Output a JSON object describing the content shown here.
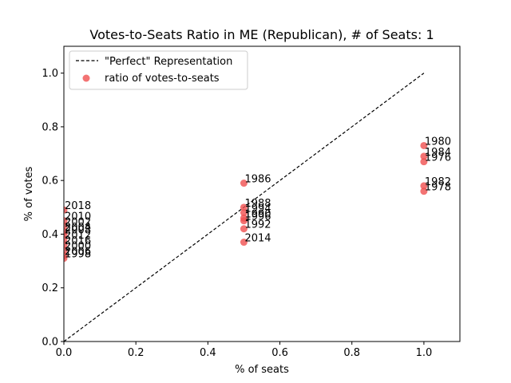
{
  "chart_data": {
    "type": "scatter",
    "title": "Votes-to-Seats Ratio in ME (Republican), # of Seats: 1",
    "xlabel": "% of seats",
    "ylabel": "% of votes",
    "xlim": [
      0,
      1.1
    ],
    "ylim": [
      0,
      1.1
    ],
    "xticks": [
      "0.0",
      "0.2",
      "0.4",
      "0.6",
      "0.8",
      "1.0"
    ],
    "yticks": [
      "0.0",
      "0.2",
      "0.4",
      "0.6",
      "0.8",
      "1.0"
    ],
    "grid": false,
    "legend_position": "top-left",
    "legend": {
      "line_label": "\"Perfect\" Representation",
      "scatter_label": "ratio of votes-to-seats"
    },
    "reference_line": {
      "x": [
        0,
        1
      ],
      "y": [
        0,
        1
      ],
      "style": "dashed",
      "color": "#000000"
    },
    "marker_color": "#f05050",
    "points": [
      {
        "year": "1980",
        "x": 1.0,
        "y": 0.73
      },
      {
        "year": "1984",
        "x": 1.0,
        "y": 0.69
      },
      {
        "year": "1976",
        "x": 1.0,
        "y": 0.67
      },
      {
        "year": "1982",
        "x": 1.0,
        "y": 0.58
      },
      {
        "year": "1978",
        "x": 1.0,
        "y": 0.56
      },
      {
        "year": "1986",
        "x": 0.5,
        "y": 0.59
      },
      {
        "year": "1988",
        "x": 0.5,
        "y": 0.5
      },
      {
        "year": "1994",
        "x": 0.5,
        "y": 0.48
      },
      {
        "year": "1990",
        "x": 0.5,
        "y": 0.46
      },
      {
        "year": "1996",
        "x": 0.5,
        "y": 0.45
      },
      {
        "year": "1992",
        "x": 0.5,
        "y": 0.42
      },
      {
        "year": "2014",
        "x": 0.5,
        "y": 0.37
      },
      {
        "year": "2018",
        "x": 0.0,
        "y": 0.49
      },
      {
        "year": "2010",
        "x": 0.0,
        "y": 0.45
      },
      {
        "year": "2002",
        "x": 0.0,
        "y": 0.43
      },
      {
        "year": "2004",
        "x": 0.0,
        "y": 0.41
      },
      {
        "year": "2008",
        "x": 0.0,
        "y": 0.4
      },
      {
        "year": "2012",
        "x": 0.0,
        "y": 0.38
      },
      {
        "year": "2016",
        "x": 0.0,
        "y": 0.36
      },
      {
        "year": "2000",
        "x": 0.0,
        "y": 0.34
      },
      {
        "year": "2006",
        "x": 0.0,
        "y": 0.32
      },
      {
        "year": "1998",
        "x": 0.0,
        "y": 0.31
      }
    ]
  }
}
